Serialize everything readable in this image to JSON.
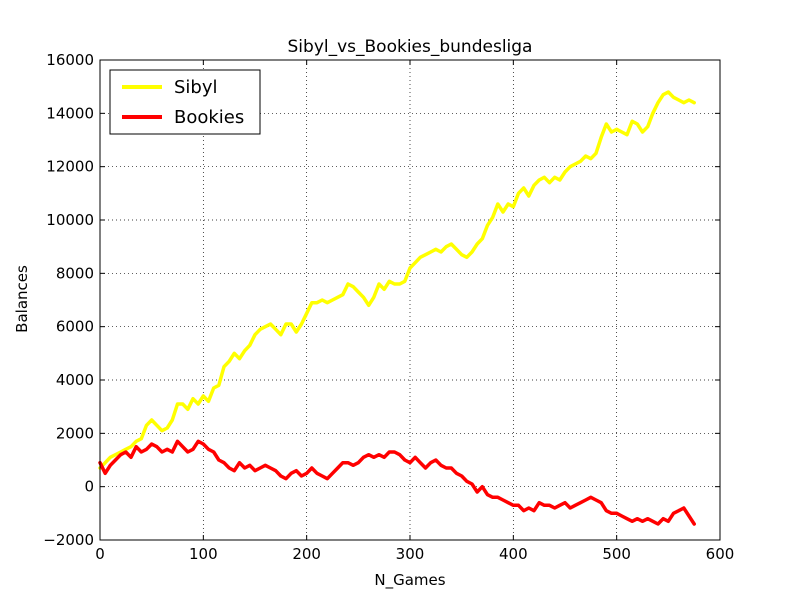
{
  "chart_data": {
    "type": "line",
    "title": "Sibyl_vs_Bookies_bundesliga",
    "xlabel": "N_Games",
    "ylabel": "Balances",
    "xlim": [
      0,
      600
    ],
    "ylim": [
      -2000,
      16000
    ],
    "xticks": [
      0,
      100,
      200,
      300,
      400,
      500,
      600
    ],
    "yticks": [
      -2000,
      0,
      2000,
      4000,
      6000,
      8000,
      10000,
      12000,
      14000,
      16000
    ],
    "ytick_labels": [
      "−2000",
      "0",
      "2000",
      "4000",
      "6000",
      "8000",
      "10000",
      "12000",
      "14000",
      "16000"
    ],
    "grid": true,
    "legend_position": "top-left",
    "series": [
      {
        "name": "Sibyl",
        "color": "#ffff00",
        "x": [
          0,
          5,
          10,
          15,
          20,
          25,
          30,
          35,
          40,
          45,
          50,
          55,
          60,
          65,
          70,
          75,
          80,
          85,
          90,
          95,
          100,
          105,
          110,
          115,
          120,
          125,
          130,
          135,
          140,
          145,
          150,
          155,
          160,
          165,
          170,
          175,
          180,
          185,
          190,
          195,
          200,
          205,
          210,
          215,
          220,
          225,
          230,
          235,
          240,
          245,
          250,
          255,
          260,
          265,
          270,
          275,
          280,
          285,
          290,
          295,
          300,
          305,
          310,
          315,
          320,
          325,
          330,
          335,
          340,
          345,
          350,
          355,
          360,
          365,
          370,
          375,
          380,
          385,
          390,
          395,
          400,
          405,
          410,
          415,
          420,
          425,
          430,
          435,
          440,
          445,
          450,
          455,
          460,
          465,
          470,
          475,
          480,
          485,
          490,
          495,
          500,
          505,
          510,
          515,
          520,
          525,
          530,
          535,
          540,
          545,
          550,
          555,
          560,
          565,
          570,
          575
        ],
        "values": [
          700,
          900,
          1100,
          1200,
          1300,
          1400,
          1500,
          1700,
          1800,
          2300,
          2500,
          2300,
          2100,
          2200,
          2500,
          3100,
          3100,
          2900,
          3300,
          3100,
          3400,
          3200,
          3700,
          3800,
          4500,
          4700,
          5000,
          4800,
          5100,
          5300,
          5700,
          5900,
          6000,
          6100,
          5900,
          5700,
          6100,
          6100,
          5800,
          6100,
          6500,
          6900,
          6900,
          7000,
          6900,
          7000,
          7100,
          7200,
          7600,
          7500,
          7300,
          7100,
          6800,
          7100,
          7600,
          7400,
          7700,
          7600,
          7600,
          7700,
          8200,
          8400,
          8600,
          8700,
          8800,
          8900,
          8800,
          9000,
          9100,
          8900,
          8700,
          8600,
          8800,
          9100,
          9300,
          9800,
          10100,
          10600,
          10300,
          10600,
          10500,
          11000,
          11200,
          10900,
          11300,
          11500,
          11600,
          11400,
          11600,
          11500,
          11800,
          12000,
          12100,
          12200,
          12400,
          12300,
          12500,
          13100,
          13600,
          13300,
          13400,
          13300,
          13200,
          13700,
          13600,
          13300,
          13500,
          14000,
          14400,
          14700,
          14800,
          14600,
          14500,
          14400,
          14500,
          14400
        ]
      },
      {
        "name": "Bookies",
        "color": "#ff0000",
        "x": [
          0,
          5,
          10,
          15,
          20,
          25,
          30,
          35,
          40,
          45,
          50,
          55,
          60,
          65,
          70,
          75,
          80,
          85,
          90,
          95,
          100,
          105,
          110,
          115,
          120,
          125,
          130,
          135,
          140,
          145,
          150,
          155,
          160,
          165,
          170,
          175,
          180,
          185,
          190,
          195,
          200,
          205,
          210,
          215,
          220,
          225,
          230,
          235,
          240,
          245,
          250,
          255,
          260,
          265,
          270,
          275,
          280,
          285,
          290,
          295,
          300,
          305,
          310,
          315,
          320,
          325,
          330,
          335,
          340,
          345,
          350,
          355,
          360,
          365,
          370,
          375,
          380,
          385,
          390,
          395,
          400,
          405,
          410,
          415,
          420,
          425,
          430,
          435,
          440,
          445,
          450,
          455,
          460,
          465,
          470,
          475,
          480,
          485,
          490,
          495,
          500,
          505,
          510,
          515,
          520,
          525,
          530,
          535,
          540,
          545,
          550,
          555,
          560,
          565,
          570,
          575
        ],
        "values": [
          900,
          500,
          800,
          1000,
          1200,
          1300,
          1100,
          1500,
          1300,
          1400,
          1600,
          1500,
          1300,
          1400,
          1300,
          1700,
          1500,
          1300,
          1400,
          1700,
          1600,
          1400,
          1300,
          1000,
          900,
          700,
          600,
          900,
          700,
          800,
          600,
          700,
          800,
          700,
          600,
          400,
          300,
          500,
          600,
          400,
          500,
          700,
          500,
          400,
          300,
          500,
          700,
          900,
          900,
          800,
          900,
          1100,
          1200,
          1100,
          1200,
          1100,
          1300,
          1300,
          1200,
          1000,
          900,
          1100,
          900,
          700,
          900,
          1000,
          800,
          700,
          700,
          500,
          400,
          200,
          100,
          -200,
          0,
          -300,
          -400,
          -400,
          -500,
          -600,
          -700,
          -700,
          -900,
          -800,
          -900,
          -600,
          -700,
          -700,
          -800,
          -700,
          -600,
          -800,
          -700,
          -600,
          -500,
          -400,
          -500,
          -600,
          -900,
          -1000,
          -1000,
          -1100,
          -1200,
          -1300,
          -1200,
          -1300,
          -1200,
          -1300,
          -1400,
          -1200,
          -1300,
          -1000,
          -900,
          -800,
          -1100,
          -1400
        ]
      }
    ]
  }
}
